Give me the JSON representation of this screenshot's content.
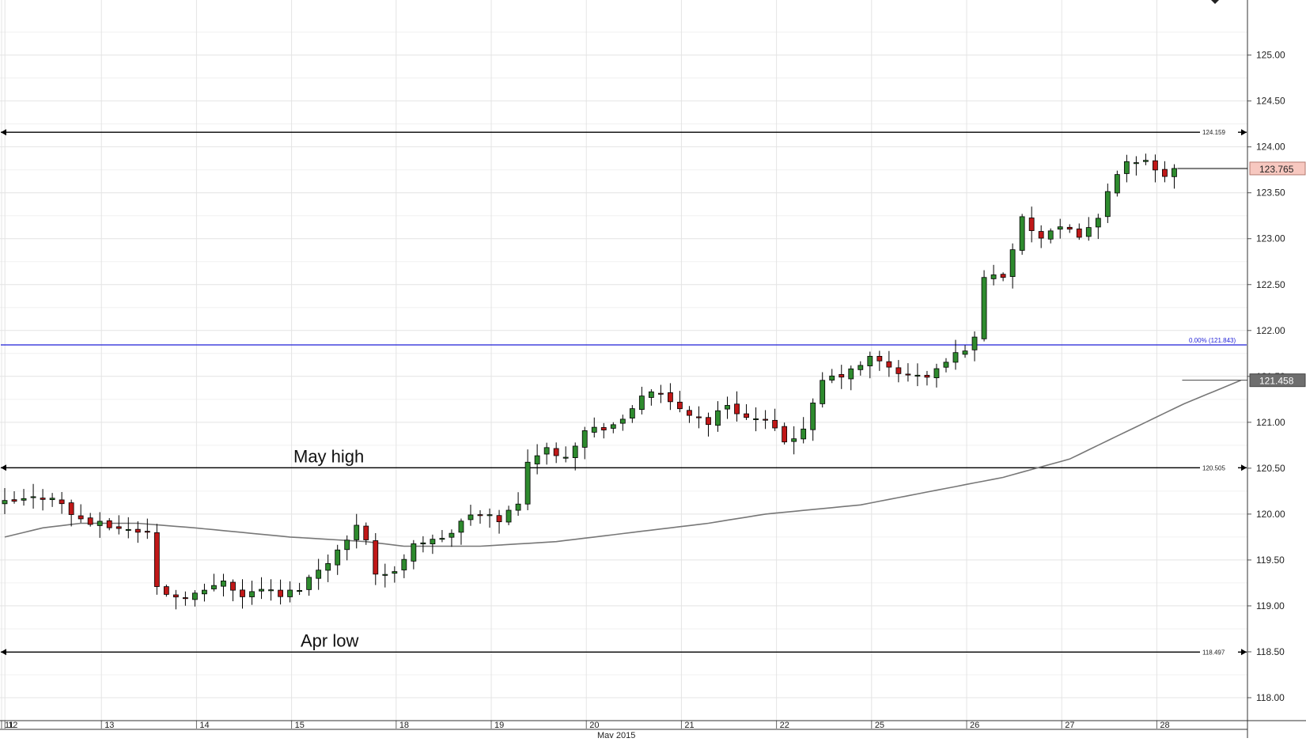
{
  "chart_data": {
    "type": "candlestick",
    "title": "",
    "xlabel": "",
    "ylabel": "",
    "month_label": "May 2015",
    "ylim": [
      117.75,
      125.6
    ],
    "y_ticks": [
      "118.00",
      "118.50",
      "119.00",
      "119.50",
      "120.00",
      "120.50",
      "121.00",
      "121.50",
      "122.00",
      "122.50",
      "123.00",
      "123.50",
      "124.00",
      "124.50",
      "125.00"
    ],
    "day_labels": [
      "11",
      "12",
      "13",
      "14",
      "15",
      "18",
      "19",
      "20",
      "21",
      "22",
      "25",
      "26",
      "27",
      "28"
    ],
    "day_starts": [
      0,
      0.35,
      10.5,
      20.5,
      30.5,
      41.5,
      51.5,
      61.5,
      71.5,
      81.5,
      91.5,
      101.5,
      111.5,
      121.5
    ],
    "n_bars": 124,
    "current_price": {
      "label": "123.765",
      "value": 123.765
    },
    "ma_price": {
      "label": "121.458",
      "value": 121.458
    },
    "levels": [
      {
        "label": "124.159",
        "value": 124.159,
        "color": "#000000"
      },
      {
        "label": "120.505",
        "value": 120.505,
        "color": "#000000"
      },
      {
        "label": "118.497",
        "value": 118.497,
        "color": "#000000"
      },
      {
        "label": "0.00% (121.843)",
        "value": 121.843,
        "color": "#1f1fd6"
      }
    ],
    "annotations": [
      {
        "text": "May high",
        "value": 120.505
      },
      {
        "text": "Apr low",
        "value": 118.497
      }
    ],
    "close_anchors": [
      [
        0,
        120.1
      ],
      [
        4,
        120.17
      ],
      [
        6,
        120.2
      ],
      [
        8,
        120.0
      ],
      [
        10,
        119.9
      ],
      [
        13,
        119.85
      ],
      [
        16,
        119.8
      ],
      [
        17,
        119.2
      ],
      [
        19,
        119.1
      ],
      [
        22,
        119.15
      ],
      [
        24,
        119.3
      ],
      [
        26,
        119.1
      ],
      [
        28,
        119.2
      ],
      [
        30,
        119.1
      ],
      [
        32,
        119.2
      ],
      [
        35,
        119.5
      ],
      [
        37,
        119.7
      ],
      [
        38,
        119.9
      ],
      [
        39,
        119.75
      ],
      [
        40,
        119.35
      ],
      [
        42,
        119.35
      ],
      [
        44,
        119.7
      ],
      [
        46,
        119.7
      ],
      [
        48,
        119.8
      ],
      [
        50,
        120.0
      ],
      [
        53,
        119.95
      ],
      [
        55,
        120.1
      ],
      [
        56,
        120.6
      ],
      [
        58,
        120.7
      ],
      [
        60,
        120.65
      ],
      [
        62,
        120.9
      ],
      [
        64,
        120.95
      ],
      [
        66,
        121.0
      ],
      [
        68,
        121.3
      ],
      [
        69,
        121.35
      ],
      [
        71,
        121.2
      ],
      [
        73,
        121.1
      ],
      [
        75,
        121.0
      ],
      [
        77,
        121.2
      ],
      [
        79,
        121.05
      ],
      [
        81,
        121.0
      ],
      [
        83,
        120.8
      ],
      [
        85,
        120.9
      ],
      [
        87,
        121.45
      ],
      [
        90,
        121.55
      ],
      [
        92,
        121.7
      ],
      [
        94,
        121.6
      ],
      [
        96,
        121.5
      ],
      [
        98,
        121.5
      ],
      [
        100,
        121.65
      ],
      [
        103,
        121.9
      ],
      [
        104,
        122.6
      ],
      [
        106,
        122.6
      ],
      [
        108,
        123.2
      ],
      [
        110,
        123.0
      ],
      [
        112,
        123.1
      ],
      [
        114,
        123.05
      ],
      [
        116,
        123.2
      ],
      [
        117,
        123.55
      ],
      [
        119,
        123.8
      ],
      [
        121,
        123.85
      ],
      [
        123,
        123.7
      ],
      [
        124,
        124.15
      ],
      [
        125,
        123.95
      ],
      [
        126,
        123.765
      ]
    ],
    "ma_anchors": [
      [
        0,
        119.75
      ],
      [
        4,
        119.85
      ],
      [
        8,
        119.9
      ],
      [
        14,
        119.9
      ],
      [
        20,
        119.85
      ],
      [
        30,
        119.75
      ],
      [
        38,
        119.7
      ],
      [
        42,
        119.65
      ],
      [
        50,
        119.65
      ],
      [
        58,
        119.7
      ],
      [
        66,
        119.8
      ],
      [
        74,
        119.9
      ],
      [
        80,
        120.0
      ],
      [
        90,
        120.1
      ],
      [
        95,
        120.2
      ],
      [
        105,
        120.4
      ],
      [
        112,
        120.6
      ],
      [
        118,
        120.9
      ],
      [
        124,
        121.2
      ],
      [
        130,
        121.458
      ]
    ],
    "moves": [
      [
        17,
        -0.45
      ],
      [
        40,
        -0.45
      ],
      [
        56,
        0.35
      ],
      [
        68,
        0.25
      ],
      [
        87,
        0.4
      ],
      [
        103,
        0.35
      ],
      [
        104,
        0.55
      ],
      [
        117,
        0.25
      ],
      [
        124,
        0.4
      ]
    ]
  }
}
